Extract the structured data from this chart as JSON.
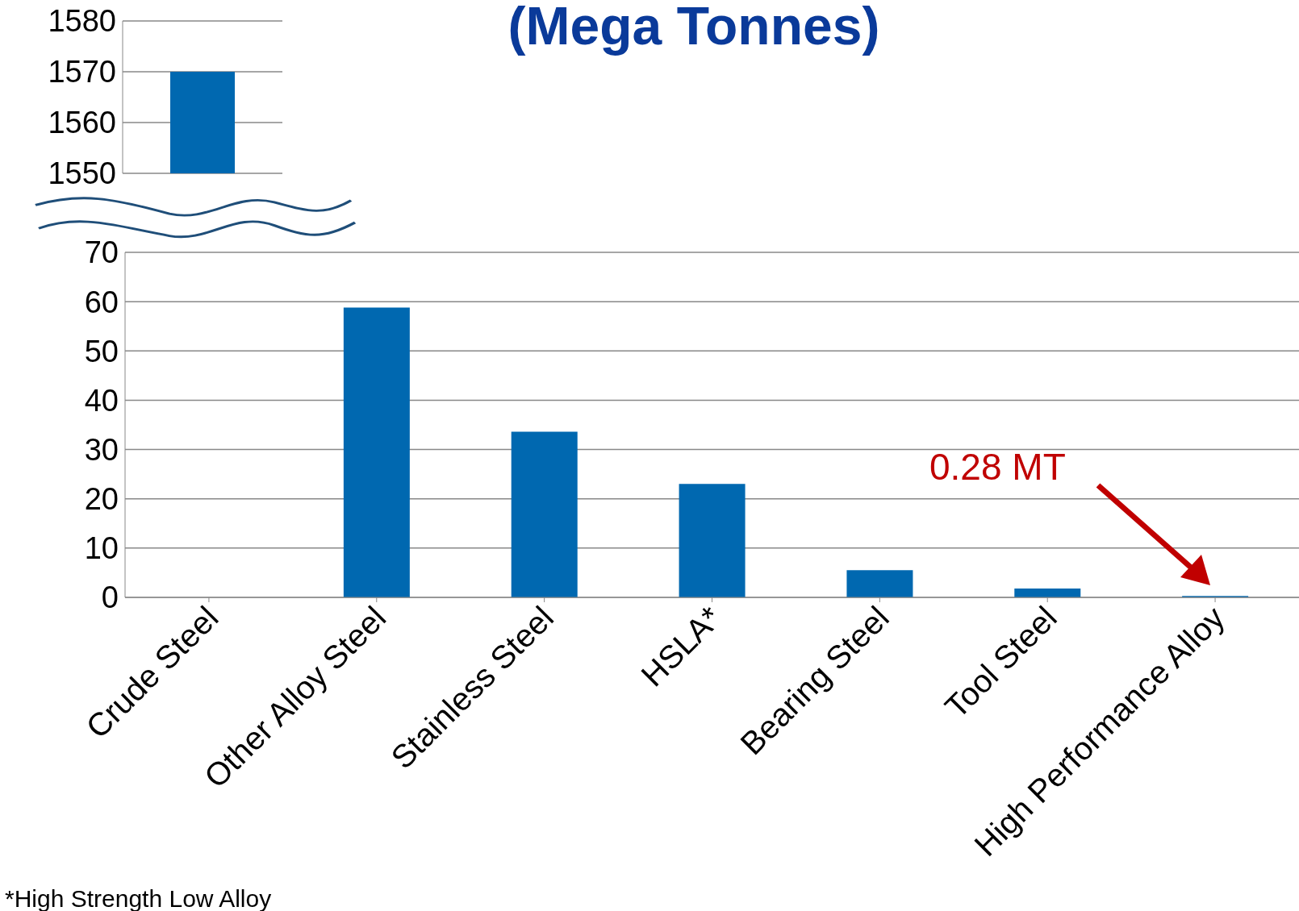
{
  "chart_data": [
    {
      "type": "bar",
      "values": [
        1570
      ],
      "color": "#0068b0",
      "ylim": [
        1550,
        1580
      ],
      "yticks": [
        1550,
        1560,
        1570,
        1580
      ],
      "grid": "y",
      "tick_labels": "y"
    },
    {
      "type": "bar",
      "title": "(Mega Tonnes)",
      "categories": [
        "Crude Steel",
        "Other Alloy Steel",
        "Stainless Steel",
        "HSLA*",
        "Bearing Steel",
        "Tool Steel",
        "High Performance Alloy"
      ],
      "values": [
        null,
        58.8,
        33.6,
        23,
        5.5,
        1.8,
        0.28
      ],
      "color": "#0068b0",
      "ylim": [
        0,
        70
      ],
      "yticks": [
        0,
        10,
        20,
        30,
        40,
        50,
        60,
        70
      ],
      "grid": "y",
      "annotations": [
        "0.28 MT",
        "*High Strength Low Alloy"
      ]
    }
  ]
}
